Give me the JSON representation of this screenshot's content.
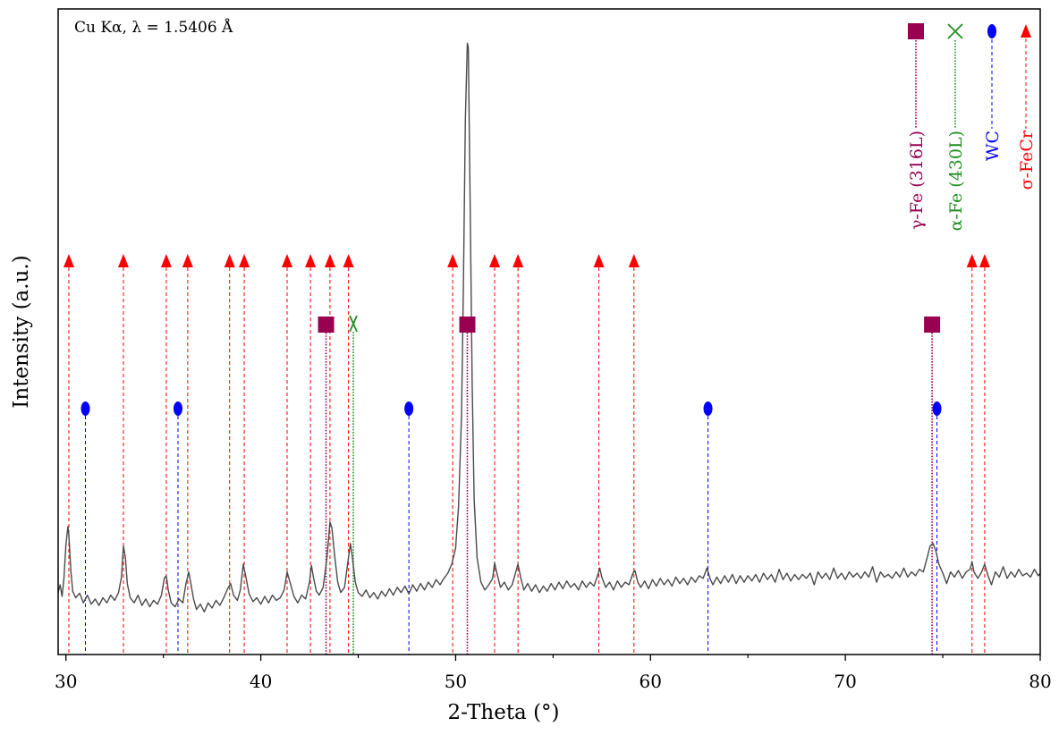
{
  "chart_data": {
    "type": "line",
    "xlabel": "2-Theta (°)",
    "ylabel": "Intensity (a.u.)",
    "annotation": "Cu Kα, λ = 1.5406 Å",
    "xlim": [
      29.6,
      80
    ],
    "ylim": [
      0,
      1000
    ],
    "x_ticks": [
      30,
      40,
      50,
      60,
      70,
      80
    ],
    "grid": false,
    "legend_placement": "top-right",
    "series": [
      {
        "color": "#4a4a4a",
        "points": [
          [
            29.6,
            96
          ],
          [
            29.7,
            108
          ],
          [
            29.8,
            90
          ],
          [
            29.9,
            118
          ],
          [
            30.0,
            170
          ],
          [
            30.1,
            198
          ],
          [
            30.15,
            185
          ],
          [
            30.25,
            130
          ],
          [
            30.35,
            98
          ],
          [
            30.5,
            88
          ],
          [
            30.7,
            95
          ],
          [
            30.9,
            80
          ],
          [
            31.1,
            92
          ],
          [
            31.3,
            78
          ],
          [
            31.5,
            86
          ],
          [
            31.7,
            76
          ],
          [
            31.9,
            88
          ],
          [
            32.1,
            80
          ],
          [
            32.3,
            92
          ],
          [
            32.5,
            84
          ],
          [
            32.7,
            96
          ],
          [
            32.85,
            120
          ],
          [
            32.95,
            168
          ],
          [
            33.05,
            150
          ],
          [
            33.15,
            110
          ],
          [
            33.3,
            88
          ],
          [
            33.5,
            80
          ],
          [
            33.7,
            92
          ],
          [
            33.9,
            76
          ],
          [
            34.1,
            86
          ],
          [
            34.3,
            74
          ],
          [
            34.5,
            84
          ],
          [
            34.7,
            78
          ],
          [
            34.9,
            92
          ],
          [
            35.05,
            118
          ],
          [
            35.15,
            122
          ],
          [
            35.25,
            100
          ],
          [
            35.4,
            80
          ],
          [
            35.6,
            74
          ],
          [
            35.8,
            86
          ],
          [
            36.0,
            80
          ],
          [
            36.15,
            108
          ],
          [
            36.3,
            128
          ],
          [
            36.4,
            112
          ],
          [
            36.55,
            86
          ],
          [
            36.7,
            70
          ],
          [
            36.9,
            78
          ],
          [
            37.1,
            66
          ],
          [
            37.3,
            80
          ],
          [
            37.5,
            72
          ],
          [
            37.7,
            84
          ],
          [
            37.9,
            76
          ],
          [
            38.1,
            88
          ],
          [
            38.3,
            102
          ],
          [
            38.45,
            110
          ],
          [
            38.6,
            92
          ],
          [
            38.8,
            84
          ],
          [
            38.95,
            100
          ],
          [
            39.1,
            140
          ],
          [
            39.25,
            118
          ],
          [
            39.4,
            94
          ],
          [
            39.6,
            82
          ],
          [
            39.8,
            88
          ],
          [
            40.0,
            78
          ],
          [
            40.2,
            90
          ],
          [
            40.4,
            80
          ],
          [
            40.6,
            92
          ],
          [
            40.8,
            84
          ],
          [
            41.0,
            88
          ],
          [
            41.2,
            100
          ],
          [
            41.35,
            128
          ],
          [
            41.5,
            112
          ],
          [
            41.7,
            90
          ],
          [
            41.9,
            80
          ],
          [
            42.1,
            92
          ],
          [
            42.3,
            86
          ],
          [
            42.5,
            112
          ],
          [
            42.6,
            138
          ],
          [
            42.7,
            120
          ],
          [
            42.85,
            98
          ],
          [
            43.0,
            92
          ],
          [
            43.2,
            104
          ],
          [
            43.4,
            150
          ],
          [
            43.55,
            205
          ],
          [
            43.65,
            196
          ],
          [
            43.8,
            150
          ],
          [
            43.95,
            112
          ],
          [
            44.1,
            96
          ],
          [
            44.3,
            104
          ],
          [
            44.5,
            150
          ],
          [
            44.6,
            172
          ],
          [
            44.7,
            150
          ],
          [
            44.85,
            112
          ],
          [
            45.0,
            96
          ],
          [
            45.2,
            90
          ],
          [
            45.4,
            100
          ],
          [
            45.6,
            88
          ],
          [
            45.8,
            96
          ],
          [
            46.0,
            86
          ],
          [
            46.2,
            98
          ],
          [
            46.4,
            90
          ],
          [
            46.6,
            102
          ],
          [
            46.8,
            92
          ],
          [
            47.0,
            104
          ],
          [
            47.2,
            96
          ],
          [
            47.4,
            106
          ],
          [
            47.6,
            94
          ],
          [
            47.8,
            108
          ],
          [
            48.0,
            98
          ],
          [
            48.2,
            110
          ],
          [
            48.4,
            100
          ],
          [
            48.6,
            112
          ],
          [
            48.8,
            104
          ],
          [
            49.0,
            116
          ],
          [
            49.2,
            108
          ],
          [
            49.4,
            118
          ],
          [
            49.6,
            126
          ],
          [
            49.8,
            140
          ],
          [
            50.0,
            165
          ],
          [
            50.15,
            230
          ],
          [
            50.3,
            370
          ],
          [
            50.4,
            570
          ],
          [
            50.5,
            830
          ],
          [
            50.6,
            947
          ],
          [
            50.65,
            940
          ],
          [
            50.75,
            680
          ],
          [
            50.85,
            420
          ],
          [
            50.95,
            240
          ],
          [
            51.1,
            150
          ],
          [
            51.3,
            112
          ],
          [
            51.5,
            100
          ],
          [
            51.7,
            108
          ],
          [
            51.9,
            118
          ],
          [
            52.0,
            142
          ],
          [
            52.1,
            128
          ],
          [
            52.3,
            104
          ],
          [
            52.5,
            112
          ],
          [
            52.7,
            100
          ],
          [
            52.9,
            108
          ],
          [
            53.05,
            124
          ],
          [
            53.2,
            140
          ],
          [
            53.35,
            118
          ],
          [
            53.5,
            100
          ],
          [
            53.7,
            110
          ],
          [
            53.9,
            98
          ],
          [
            54.1,
            108
          ],
          [
            54.3,
            96
          ],
          [
            54.5,
            106
          ],
          [
            54.7,
            98
          ],
          [
            54.9,
            110
          ],
          [
            55.1,
            100
          ],
          [
            55.3,
            112
          ],
          [
            55.5,
            102
          ],
          [
            55.7,
            114
          ],
          [
            55.9,
            104
          ],
          [
            56.1,
            110
          ],
          [
            56.3,
            100
          ],
          [
            56.5,
            114
          ],
          [
            56.7,
            104
          ],
          [
            56.9,
            112
          ],
          [
            57.1,
            106
          ],
          [
            57.3,
            124
          ],
          [
            57.4,
            134
          ],
          [
            57.5,
            120
          ],
          [
            57.7,
            104
          ],
          [
            57.9,
            112
          ],
          [
            58.1,
            100
          ],
          [
            58.3,
            114
          ],
          [
            58.5,
            104
          ],
          [
            58.7,
            112
          ],
          [
            58.9,
            108
          ],
          [
            59.1,
            126
          ],
          [
            59.2,
            130
          ],
          [
            59.35,
            112
          ],
          [
            59.5,
            104
          ],
          [
            59.7,
            114
          ],
          [
            59.9,
            102
          ],
          [
            60.1,
            116
          ],
          [
            60.3,
            106
          ],
          [
            60.5,
            118
          ],
          [
            60.7,
            108
          ],
          [
            60.9,
            116
          ],
          [
            61.1,
            106
          ],
          [
            61.3,
            120
          ],
          [
            61.5,
            110
          ],
          [
            61.7,
            118
          ],
          [
            61.9,
            108
          ],
          [
            62.1,
            120
          ],
          [
            62.3,
            112
          ],
          [
            62.5,
            122
          ],
          [
            62.7,
            118
          ],
          [
            62.9,
            134
          ],
          [
            63.05,
            118
          ],
          [
            63.2,
            108
          ],
          [
            63.4,
            120
          ],
          [
            63.6,
            110
          ],
          [
            63.8,
            122
          ],
          [
            64.0,
            112
          ],
          [
            64.2,
            124
          ],
          [
            64.4,
            110
          ],
          [
            64.6,
            122
          ],
          [
            64.8,
            112
          ],
          [
            65.0,
            122
          ],
          [
            65.2,
            114
          ],
          [
            65.4,
            124
          ],
          [
            65.6,
            112
          ],
          [
            65.8,
            126
          ],
          [
            66.0,
            116
          ],
          [
            66.2,
            124
          ],
          [
            66.4,
            112
          ],
          [
            66.6,
            132
          ],
          [
            66.8,
            116
          ],
          [
            67.0,
            126
          ],
          [
            67.2,
            114
          ],
          [
            67.4,
            124
          ],
          [
            67.6,
            116
          ],
          [
            67.8,
            124
          ],
          [
            68.0,
            118
          ],
          [
            68.2,
            126
          ],
          [
            68.4,
            108
          ],
          [
            68.6,
            128
          ],
          [
            68.8,
            118
          ],
          [
            69.0,
            126
          ],
          [
            69.2,
            116
          ],
          [
            69.4,
            134
          ],
          [
            69.6,
            118
          ],
          [
            69.8,
            126
          ],
          [
            70.0,
            116
          ],
          [
            70.2,
            128
          ],
          [
            70.4,
            120
          ],
          [
            70.6,
            126
          ],
          [
            70.8,
            118
          ],
          [
            71.0,
            128
          ],
          [
            71.2,
            120
          ],
          [
            71.4,
            136
          ],
          [
            71.6,
            112
          ],
          [
            71.8,
            128
          ],
          [
            72.0,
            120
          ],
          [
            72.2,
            124
          ],
          [
            72.4,
            118
          ],
          [
            72.6,
            128
          ],
          [
            72.8,
            120
          ],
          [
            73.0,
            134
          ],
          [
            73.2,
            120
          ],
          [
            73.4,
            128
          ],
          [
            73.6,
            122
          ],
          [
            73.8,
            132
          ],
          [
            74.0,
            128
          ],
          [
            74.2,
            150
          ],
          [
            74.35,
            168
          ],
          [
            74.5,
            172
          ],
          [
            74.65,
            160
          ],
          [
            74.8,
            140
          ],
          [
            75.0,
            126
          ],
          [
            75.2,
            110
          ],
          [
            75.4,
            128
          ],
          [
            75.6,
            120
          ],
          [
            75.8,
            130
          ],
          [
            76.0,
            118
          ],
          [
            76.2,
            128
          ],
          [
            76.4,
            132
          ],
          [
            76.5,
            144
          ],
          [
            76.6,
            128
          ],
          [
            76.8,
            118
          ],
          [
            77.0,
            128
          ],
          [
            77.15,
            140
          ],
          [
            77.3,
            124
          ],
          [
            77.5,
            108
          ],
          [
            77.7,
            128
          ],
          [
            77.9,
            120
          ],
          [
            78.1,
            136
          ],
          [
            78.3,
            118
          ],
          [
            78.5,
            128
          ],
          [
            78.7,
            120
          ],
          [
            78.9,
            132
          ],
          [
            79.1,
            122
          ],
          [
            79.3,
            126
          ],
          [
            79.5,
            120
          ],
          [
            79.7,
            132
          ],
          [
            79.9,
            122
          ],
          [
            80.0,
            126
          ]
        ]
      }
    ],
    "reference_phases": [
      {
        "name": "γ-Fe (316L)",
        "marker": "square",
        "color": "#990050",
        "line_style": "dotted",
        "positions": [
          43.35,
          50.6,
          74.45
        ]
      },
      {
        "name": "α-Fe (430L)",
        "marker": "x",
        "color": "#1f8f1f",
        "line_style": "dotted",
        "positions": [
          44.75
        ]
      },
      {
        "name": "WC",
        "marker": "ellipse",
        "color": "#0000ff",
        "line_style": "dashed",
        "positions": [
          31.0,
          35.75,
          47.6,
          62.95,
          74.7
        ]
      },
      {
        "name": "σ-FeCr",
        "marker": "triangle",
        "color": "#ff0000",
        "line_style": "dashed",
        "positions": [
          30.15,
          32.95,
          35.15,
          36.25,
          38.4,
          39.15,
          41.35,
          42.55,
          43.55,
          44.5,
          49.85,
          52.0,
          53.2,
          57.35,
          59.15,
          76.5,
          77.15
        ]
      }
    ]
  }
}
